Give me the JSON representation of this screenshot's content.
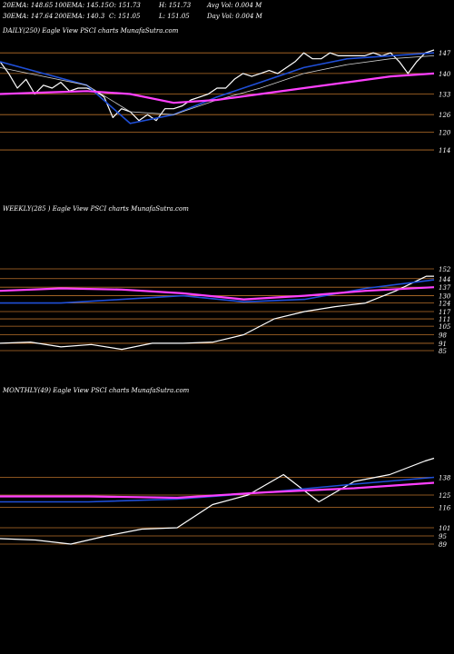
{
  "header": {
    "row1": [
      "20EMA: 148.65",
      "100EMA: 145.15",
      "O: 151.73",
      "H: 151.73",
      "Avg Vol: 0.004 M"
    ],
    "row2": [
      "30EMA: 147.64",
      "200EMA: 140.3",
      "C: 151.05",
      "L: 151.05",
      "Day Vol: 0.004 M"
    ]
  },
  "colors": {
    "background": "#000000",
    "price": "#ffffff",
    "ema_short": "#1f4fd8",
    "ema_long": "#ff40ff",
    "ema_mid": "#d0d0d0",
    "ema_thin": "#cc8844",
    "level_line": "#b8702a"
  },
  "chart_data": [
    {
      "panel": "daily",
      "title": "DAILY(250) Eagle  View  PSCI charts MunafaSutra.com",
      "type": "line",
      "levels": [
        147,
        140,
        133,
        126,
        120,
        114
      ],
      "series": [
        {
          "role": "price",
          "x": [
            0,
            5,
            10,
            15,
            20,
            25,
            30,
            35,
            40,
            45,
            50,
            55,
            60,
            65,
            70,
            75,
            80,
            85,
            90,
            95,
            100,
            105,
            110,
            115,
            120,
            125,
            130,
            135,
            140,
            145,
            150,
            155,
            160,
            165,
            170,
            175,
            180,
            185,
            190,
            195,
            200,
            205,
            210,
            215,
            220,
            225,
            230,
            235,
            240,
            245,
            250
          ],
          "values": [
            144,
            140,
            135,
            138,
            133,
            136,
            135,
            137,
            134,
            135,
            135,
            134,
            132,
            125,
            128,
            127,
            124,
            126,
            124,
            128,
            128,
            129,
            131,
            132,
            133,
            135,
            135,
            138,
            140,
            139,
            140,
            141,
            140,
            142,
            144,
            147,
            145,
            145,
            147,
            146,
            146,
            146,
            146,
            147,
            146,
            147,
            144,
            140,
            144,
            147,
            148
          ]
        },
        {
          "role": "ema_short",
          "x": [
            0,
            25,
            50,
            75,
            100,
            125,
            150,
            175,
            200,
            225,
            250
          ],
          "values": [
            144,
            140,
            136,
            123,
            126,
            132,
            137,
            142,
            145,
            146,
            147
          ]
        },
        {
          "role": "ema_mid",
          "x": [
            0,
            25,
            50,
            75,
            100,
            125,
            150,
            175,
            200,
            225,
            250
          ],
          "values": [
            142,
            139,
            136,
            127,
            126,
            131,
            135,
            140,
            143,
            145,
            146
          ]
        },
        {
          "role": "ema_long",
          "x": [
            0,
            25,
            50,
            75,
            100,
            125,
            150,
            175,
            200,
            225,
            250
          ],
          "values": [
            133,
            133.5,
            134,
            133,
            130,
            131,
            133,
            135,
            137,
            139,
            140
          ]
        }
      ]
    },
    {
      "panel": "weekly",
      "title": "WEEKLY(285                    ) Eagle  View  PSCI charts MunafaSutra.com",
      "type": "line",
      "levels": [
        152,
        144,
        137,
        130,
        124,
        117,
        111,
        105,
        98,
        91,
        85
      ],
      "series": [
        {
          "role": "price",
          "x": [
            0,
            20,
            40,
            60,
            80,
            100,
            120,
            140,
            160,
            180,
            200,
            220,
            240,
            260,
            280,
            285
          ],
          "values": [
            91,
            92,
            88,
            90,
            86,
            91,
            91,
            92,
            98,
            111,
            117,
            121,
            124,
            134,
            146,
            146
          ]
        },
        {
          "role": "ema_short",
          "x": [
            0,
            40,
            80,
            120,
            160,
            200,
            240,
            285
          ],
          "values": [
            124,
            124,
            127,
            130,
            125,
            127,
            136,
            143
          ]
        },
        {
          "role": "ema_long",
          "x": [
            0,
            40,
            80,
            120,
            160,
            200,
            240,
            285
          ],
          "values": [
            134,
            136,
            135,
            132,
            127,
            130,
            134,
            137
          ]
        }
      ]
    },
    {
      "panel": "monthly",
      "title": "MONTHLY(49) Eagle  View  PSCI charts MunafaSutra.com",
      "type": "line",
      "levels": [
        138,
        125,
        116,
        101,
        95,
        89
      ],
      "series": [
        {
          "role": "price",
          "x": [
            0,
            4,
            8,
            12,
            16,
            20,
            24,
            28,
            32,
            36,
            40,
            44,
            48,
            49
          ],
          "values": [
            93,
            92,
            89,
            95,
            100,
            101,
            118,
            125,
            140,
            120,
            135,
            140,
            150,
            152
          ]
        },
        {
          "role": "ema_short",
          "x": [
            0,
            10,
            20,
            30,
            40,
            49
          ],
          "values": [
            120,
            120,
            122,
            127,
            133,
            138
          ]
        },
        {
          "role": "ema_long",
          "x": [
            0,
            10,
            20,
            30,
            40,
            49
          ],
          "values": [
            124,
            124,
            123,
            127,
            130,
            134
          ]
        }
      ]
    }
  ]
}
